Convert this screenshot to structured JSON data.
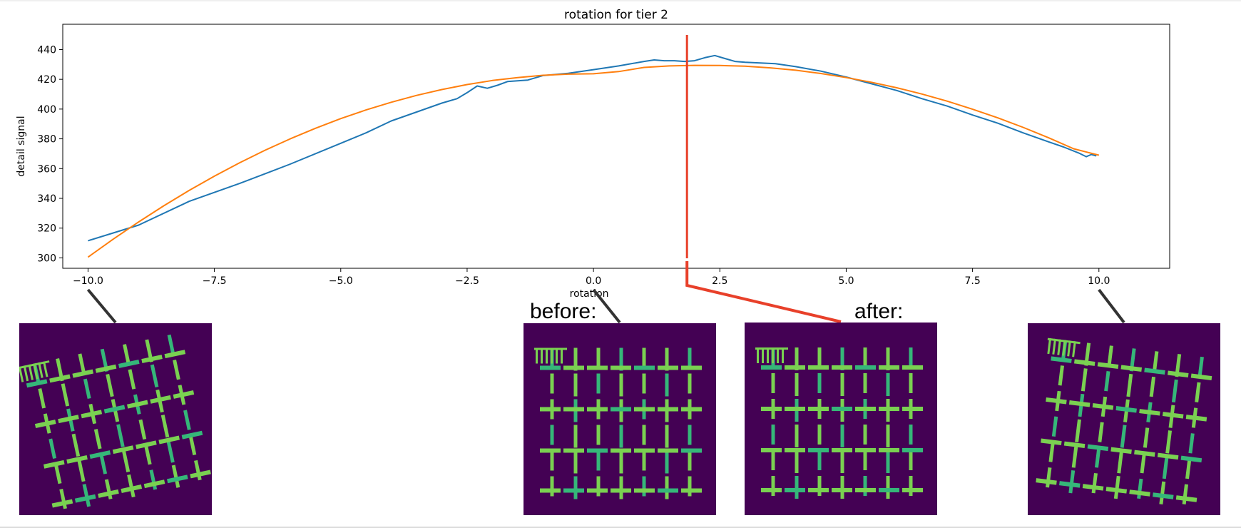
{
  "chart_data": {
    "type": "line",
    "title": "rotation for tier 2",
    "xlabel": "rotation",
    "ylabel": "detail signal",
    "xlim": [
      -10.5,
      11.4
    ],
    "ylim": [
      293,
      457
    ],
    "x_ticks": [
      -10.0,
      -7.5,
      -5.0,
      -2.5,
      0.0,
      2.5,
      5.0,
      7.5,
      10.0
    ],
    "x_tick_labels": [
      "−10.0",
      "−7.5",
      "−5.0",
      "−2.5",
      "0.0",
      "2.5",
      "5.0",
      "7.5",
      "10.0"
    ],
    "y_ticks": [
      300,
      320,
      340,
      360,
      380,
      400,
      420,
      440
    ],
    "y_tick_labels": [
      "300",
      "320",
      "340",
      "360",
      "380",
      "400",
      "420",
      "440"
    ],
    "grid": false,
    "series": [
      {
        "color": "#1f77b4",
        "x": [
          -10.0,
          -9.0,
          -8.0,
          -7.0,
          -6.0,
          -5.0,
          -4.5,
          -4.0,
          -3.5,
          -3.0,
          -2.7,
          -2.5,
          -2.3,
          -2.1,
          -1.9,
          -1.7,
          -1.5,
          -1.3,
          -1.0,
          -0.5,
          0.0,
          0.5,
          1.0,
          1.2,
          1.4,
          1.6,
          1.8,
          2.0,
          2.2,
          2.4,
          2.6,
          2.8,
          3.0,
          3.3,
          3.6,
          4.0,
          4.5,
          5.0,
          5.5,
          6.0,
          6.5,
          7.0,
          7.5,
          8.0,
          8.5,
          9.0,
          9.3,
          9.6,
          9.75,
          9.85,
          9.95
        ],
        "values": [
          311.5,
          322,
          338,
          350,
          363,
          377,
          384,
          392,
          398,
          404,
          407,
          411,
          415.5,
          414,
          416,
          418.5,
          419,
          419.5,
          422.5,
          424,
          426.5,
          429,
          432,
          433,
          432.5,
          432.5,
          432,
          432.5,
          434.5,
          436,
          434,
          432,
          431.5,
          431,
          430.5,
          428.5,
          425.5,
          421.5,
          417,
          412.5,
          407,
          402,
          396,
          390.5,
          384,
          378,
          374.5,
          370.5,
          368,
          369.5,
          368.5
        ]
      },
      {
        "color": "#ff7f0e",
        "x": [
          -10.0,
          -9.5,
          -9.0,
          -8.5,
          -8.0,
          -7.5,
          -7.0,
          -6.5,
          -6.0,
          -5.5,
          -5.0,
          -4.5,
          -4.0,
          -3.5,
          -3.0,
          -2.5,
          -2.0,
          -1.5,
          -1.0,
          -0.5,
          0.0,
          0.5,
          1.0,
          1.5,
          2.0,
          2.5,
          3.0,
          3.5,
          4.0,
          4.5,
          5.0,
          5.5,
          6.0,
          6.5,
          7.0,
          7.5,
          8.0,
          8.5,
          9.0,
          9.5,
          10.0
        ],
        "values": [
          300.5,
          312.6,
          324.1,
          335.0,
          345.3,
          354.9,
          363.9,
          372.3,
          380.0,
          387.1,
          393.6,
          399.4,
          404.6,
          409.2,
          413.1,
          416.5,
          419.2,
          421.2,
          422.7,
          423.5,
          423.7,
          425.2,
          428.0,
          429.0,
          429.4,
          429.3,
          428.8,
          427.7,
          426.1,
          423.9,
          421.2,
          418.0,
          414.3,
          410.1,
          405.3,
          399.9,
          394.1,
          387.7,
          380.8,
          373.3,
          369.0
        ]
      }
    ],
    "marker": {
      "x": 1.85,
      "color": "#e8402a"
    },
    "annotations": [
      {
        "text": "before:"
      },
      {
        "text": "after:"
      }
    ],
    "thumbnails": [
      {
        "for_x": -10.0,
        "rotation": -12
      },
      {
        "for_x": 0.0,
        "rotation": 0
      },
      {
        "for_x": 1.85,
        "rotation": 0
      },
      {
        "for_x": 10.0,
        "rotation": 7
      }
    ]
  }
}
